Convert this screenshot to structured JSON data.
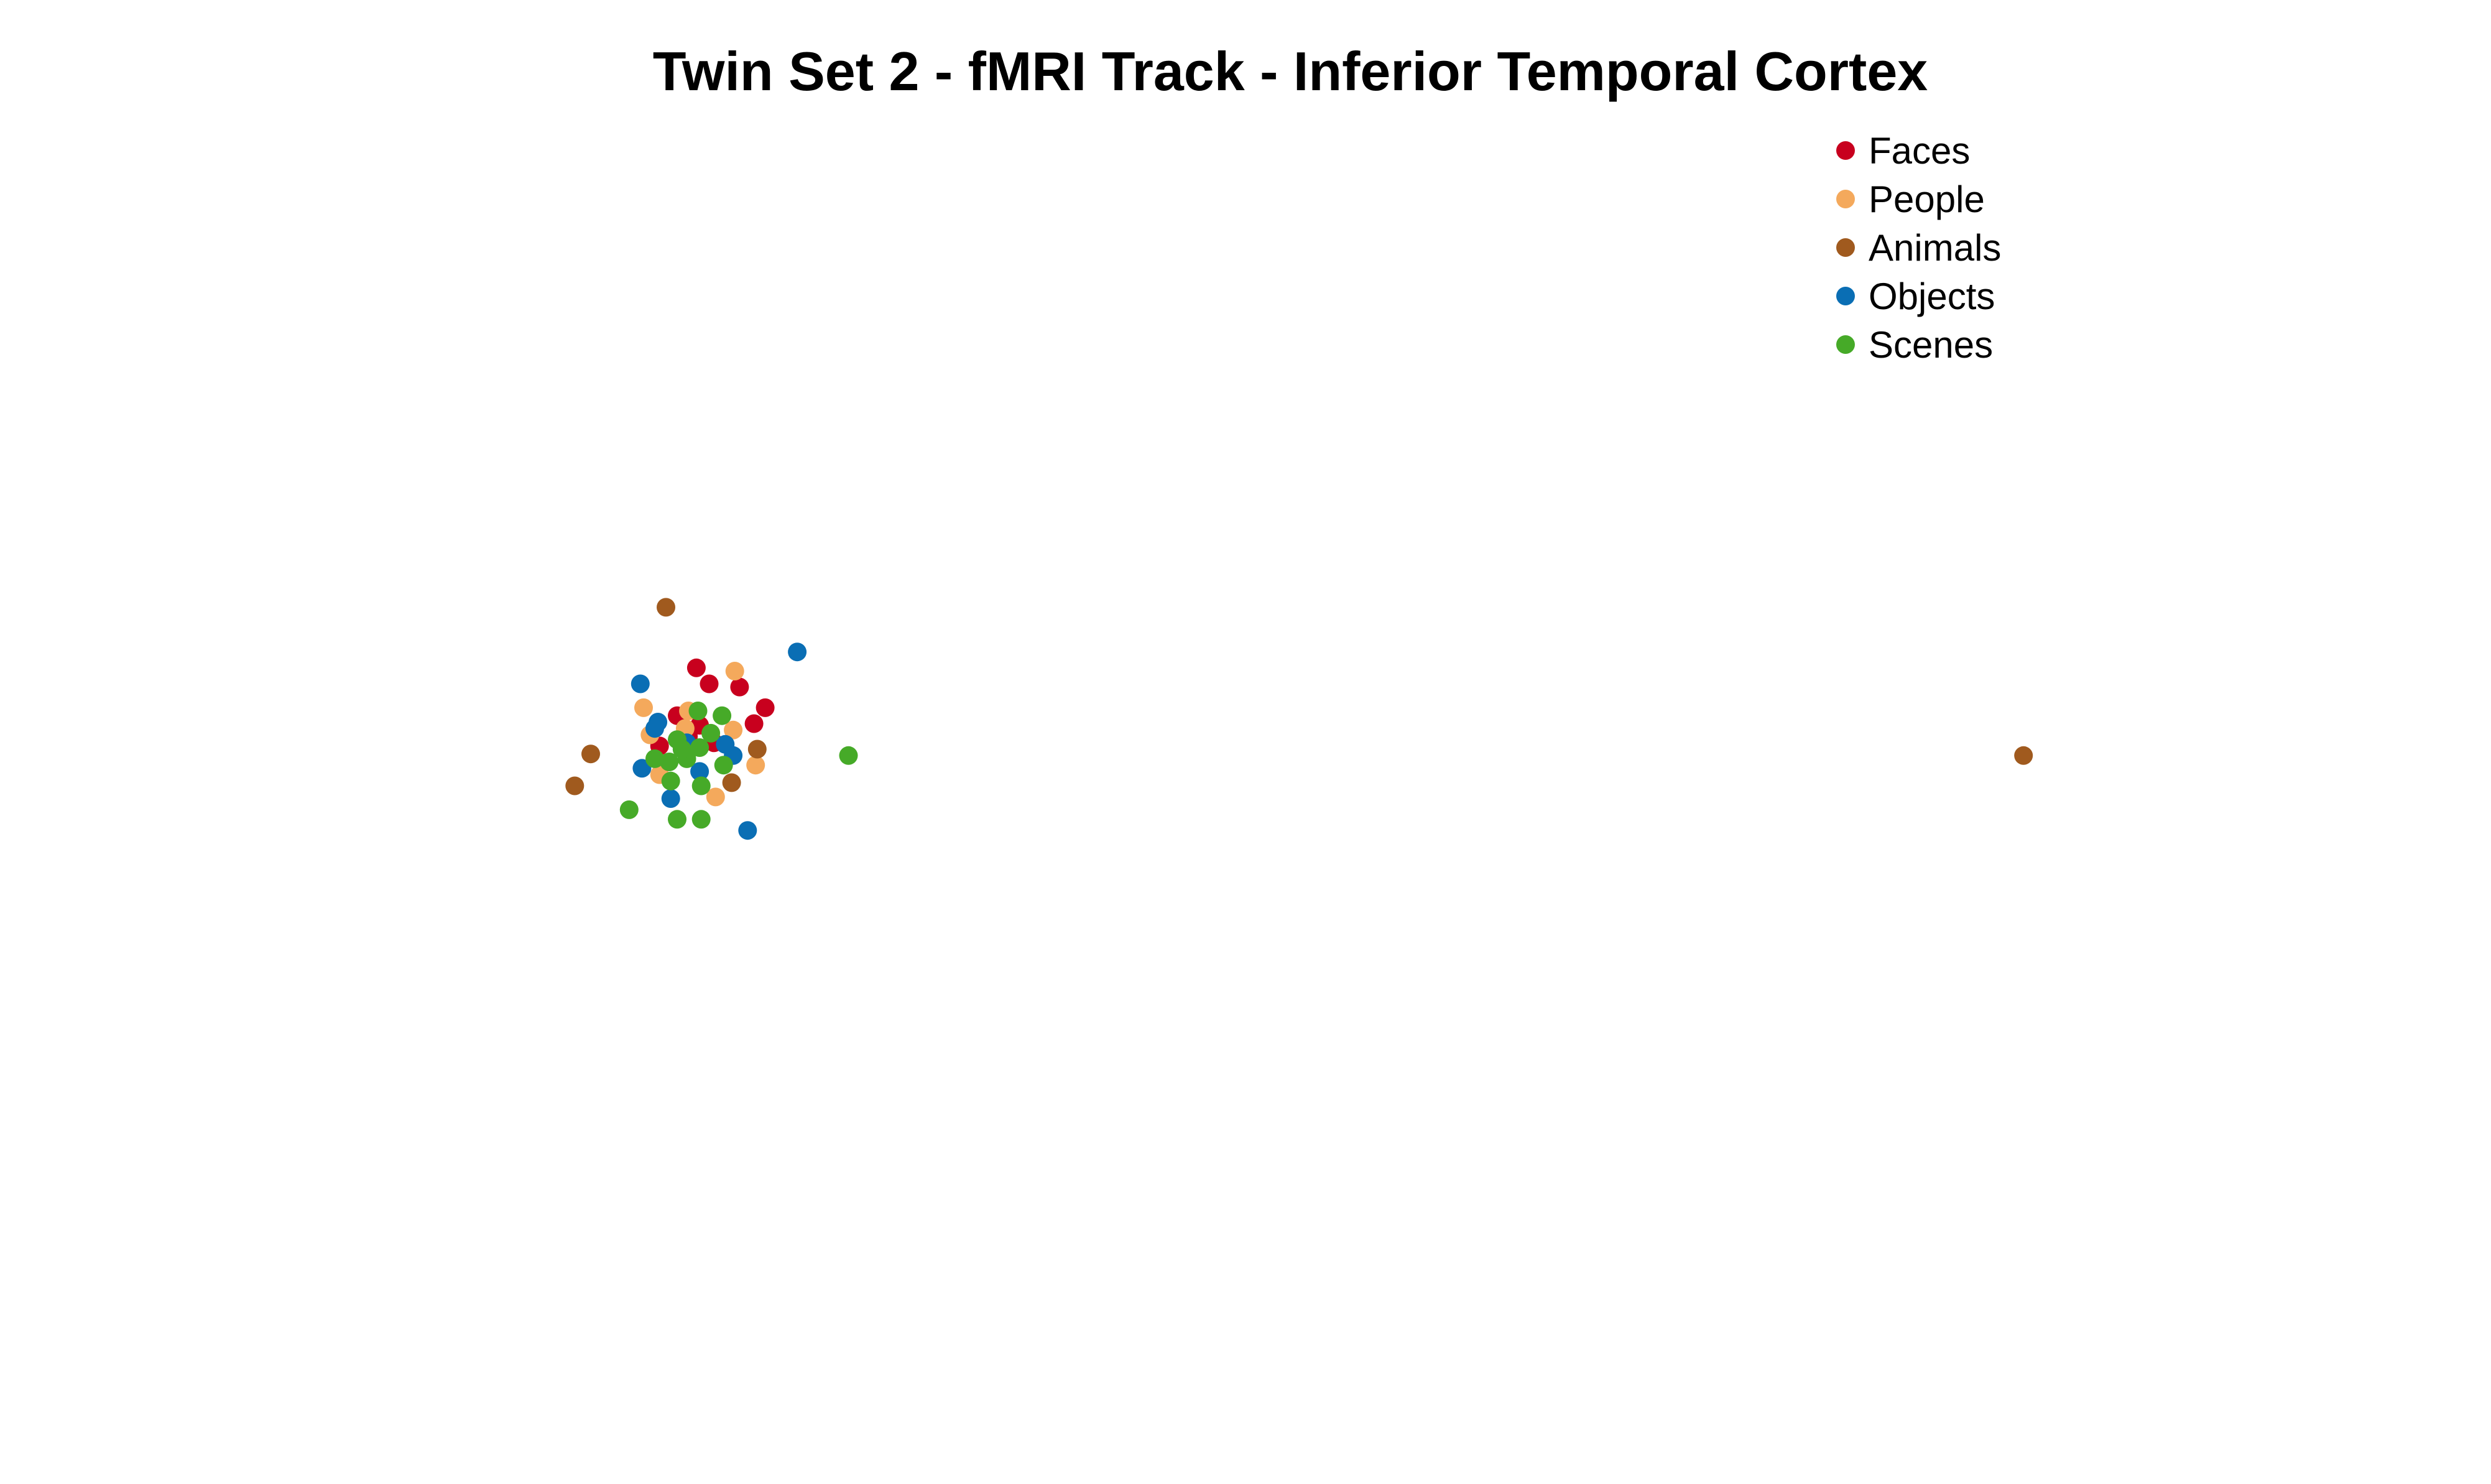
{
  "chart_data": {
    "type": "scatter",
    "title": "Twin Set 2 - fMRI Track - Inferior Temporal Cortex",
    "xlabel": "",
    "ylabel": "",
    "axes_visible": false,
    "grid": false,
    "xlim": [
      0,
      1556
    ],
    "ylim": [
      -931,
      0
    ],
    "legend_position": "top-right",
    "series": [
      {
        "name": "Faces",
        "color": "#c8001e",
        "points": [
          {
            "x": 435,
            "y": -419
          },
          {
            "x": 443,
            "y": -429
          },
          {
            "x": 462,
            "y": -431
          },
          {
            "x": 478,
            "y": -444
          },
          {
            "x": 471,
            "y": -454
          },
          {
            "x": 423,
            "y": -449
          },
          {
            "x": 437,
            "y": -455
          },
          {
            "x": 412,
            "y": -468
          },
          {
            "x": 430,
            "y": -462
          },
          {
            "x": 446,
            "y": -466
          }
        ]
      },
      {
        "name": "People",
        "color": "#f4a95c",
        "points": [
          {
            "x": 459,
            "y": -421
          },
          {
            "x": 402,
            "y": -444
          },
          {
            "x": 430,
            "y": -446
          },
          {
            "x": 458,
            "y": -458
          },
          {
            "x": 406,
            "y": -461
          },
          {
            "x": 472,
            "y": -480
          },
          {
            "x": 412,
            "y": -486
          },
          {
            "x": 447,
            "y": -500
          },
          {
            "x": 428,
            "y": -457
          }
        ]
      },
      {
        "name": "Animals",
        "color": "#a05a1e",
        "points": [
          {
            "x": 416,
            "y": -381
          },
          {
            "x": 369,
            "y": -473
          },
          {
            "x": 359,
            "y": -493
          },
          {
            "x": 473,
            "y": -470
          },
          {
            "x": 457,
            "y": -491
          },
          {
            "x": 1264,
            "y": -474
          }
        ]
      },
      {
        "name": "Objects",
        "color": "#0a6eb4",
        "points": [
          {
            "x": 498,
            "y": -409
          },
          {
            "x": 400,
            "y": -429
          },
          {
            "x": 411,
            "y": -453
          },
          {
            "x": 409,
            "y": -457
          },
          {
            "x": 453,
            "y": -467
          },
          {
            "x": 458,
            "y": -474
          },
          {
            "x": 401,
            "y": -482
          },
          {
            "x": 437,
            "y": -484
          },
          {
            "x": 419,
            "y": -501
          },
          {
            "x": 467,
            "y": -521
          },
          {
            "x": 429,
            "y": -466
          }
        ]
      },
      {
        "name": "Scenes",
        "color": "#46aa28",
        "points": [
          {
            "x": 436,
            "y": -446
          },
          {
            "x": 451,
            "y": -449
          },
          {
            "x": 444,
            "y": -460
          },
          {
            "x": 423,
            "y": -464
          },
          {
            "x": 437,
            "y": -469
          },
          {
            "x": 429,
            "y": -476
          },
          {
            "x": 418,
            "y": -478
          },
          {
            "x": 409,
            "y": -476
          },
          {
            "x": 452,
            "y": -480
          },
          {
            "x": 419,
            "y": -490
          },
          {
            "x": 438,
            "y": -493
          },
          {
            "x": 530,
            "y": -474
          },
          {
            "x": 393,
            "y": -508
          },
          {
            "x": 423,
            "y": -514
          },
          {
            "x": 438,
            "y": -514
          },
          {
            "x": 426,
            "y": -470
          }
        ]
      }
    ]
  }
}
